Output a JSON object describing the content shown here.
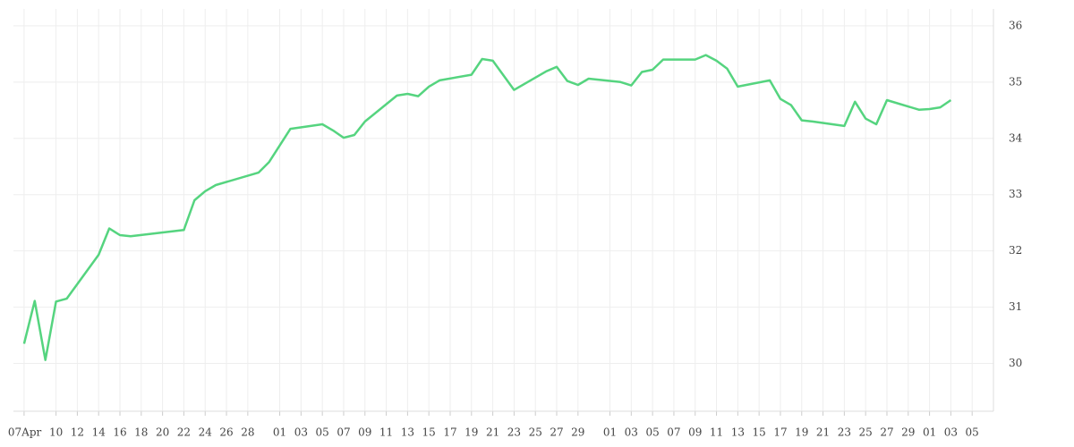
{
  "chart_data": {
    "type": "line",
    "x": [
      "04-07",
      "04-08",
      "04-09",
      "04-10",
      "04-11",
      "04-14",
      "04-15",
      "04-16",
      "04-17",
      "04-22",
      "04-23",
      "04-24",
      "04-25",
      "04-29",
      "04-30",
      "05-02",
      "05-05",
      "05-06",
      "05-07",
      "05-08",
      "05-09",
      "05-12",
      "05-13",
      "05-14",
      "05-15",
      "05-16",
      "05-19",
      "05-20",
      "05-21",
      "05-23",
      "05-26",
      "05-27",
      "05-28",
      "05-29",
      "05-30",
      "06-02",
      "06-03",
      "06-04",
      "06-05",
      "06-06",
      "06-09",
      "06-10",
      "06-11",
      "06-12",
      "06-13",
      "06-16",
      "06-17",
      "06-18",
      "06-19",
      "06-20",
      "06-23",
      "06-24",
      "06-25",
      "06-26",
      "06-27",
      "06-30",
      "07-01",
      "07-02",
      "07-03"
    ],
    "series": [
      {
        "color": "#55d47f",
        "values": [
          30.35,
          31.11,
          30.06,
          31.1,
          31.15,
          31.93,
          32.4,
          32.28,
          32.26,
          32.37,
          32.9,
          33.06,
          33.17,
          33.39,
          33.58,
          34.17,
          34.25,
          34.14,
          34.01,
          34.06,
          34.3,
          34.76,
          34.79,
          34.75,
          34.92,
          35.03,
          35.13,
          35.41,
          35.38,
          34.86,
          35.19,
          35.27,
          35.02,
          34.95,
          35.06,
          35.0,
          34.94,
          35.18,
          35.22,
          35.4,
          35.4,
          35.48,
          35.38,
          35.24,
          34.92,
          35.03,
          34.7,
          34.59,
          34.32,
          34.3,
          34.22,
          34.65,
          34.35,
          34.25,
          34.68,
          34.51,
          34.52,
          34.55,
          34.68
        ]
      }
    ],
    "xlim": [
      "04-06",
      "07-07"
    ],
    "xticks": [
      {
        "value": "04-07",
        "label": "07Apr"
      },
      {
        "value": "04-10",
        "label": "10"
      },
      {
        "value": "04-12",
        "label": "12"
      },
      {
        "value": "04-14",
        "label": "14"
      },
      {
        "value": "04-16",
        "label": "16"
      },
      {
        "value": "04-18",
        "label": "18"
      },
      {
        "value": "04-20",
        "label": "20"
      },
      {
        "value": "04-22",
        "label": "22"
      },
      {
        "value": "04-24",
        "label": "24"
      },
      {
        "value": "04-26",
        "label": "26"
      },
      {
        "value": "04-28",
        "label": "28"
      },
      {
        "value": "05-01",
        "label": "01"
      },
      {
        "value": "05-03",
        "label": "03"
      },
      {
        "value": "05-05",
        "label": "05"
      },
      {
        "value": "05-07",
        "label": "07"
      },
      {
        "value": "05-09",
        "label": "09"
      },
      {
        "value": "05-11",
        "label": "11"
      },
      {
        "value": "05-13",
        "label": "13"
      },
      {
        "value": "05-15",
        "label": "15"
      },
      {
        "value": "05-17",
        "label": "17"
      },
      {
        "value": "05-19",
        "label": "19"
      },
      {
        "value": "05-21",
        "label": "21"
      },
      {
        "value": "05-23",
        "label": "23"
      },
      {
        "value": "05-25",
        "label": "25"
      },
      {
        "value": "05-27",
        "label": "27"
      },
      {
        "value": "05-29",
        "label": "29"
      },
      {
        "value": "06-01",
        "label": "01"
      },
      {
        "value": "06-03",
        "label": "03"
      },
      {
        "value": "06-05",
        "label": "05"
      },
      {
        "value": "06-07",
        "label": "07"
      },
      {
        "value": "06-09",
        "label": "09"
      },
      {
        "value": "06-11",
        "label": "11"
      },
      {
        "value": "06-13",
        "label": "13"
      },
      {
        "value": "06-15",
        "label": "15"
      },
      {
        "value": "06-17",
        "label": "17"
      },
      {
        "value": "06-19",
        "label": "19"
      },
      {
        "value": "06-21",
        "label": "21"
      },
      {
        "value": "06-23",
        "label": "23"
      },
      {
        "value": "06-25",
        "label": "25"
      },
      {
        "value": "06-27",
        "label": "27"
      },
      {
        "value": "06-29",
        "label": "29"
      },
      {
        "value": "07-01",
        "label": "01"
      },
      {
        "value": "07-03",
        "label": "03"
      },
      {
        "value": "07-05",
        "label": "05"
      }
    ],
    "ylim": [
      29.15,
      36.3
    ],
    "yticks": [
      30,
      31,
      32,
      33,
      34,
      35,
      36
    ],
    "grid": true
  }
}
